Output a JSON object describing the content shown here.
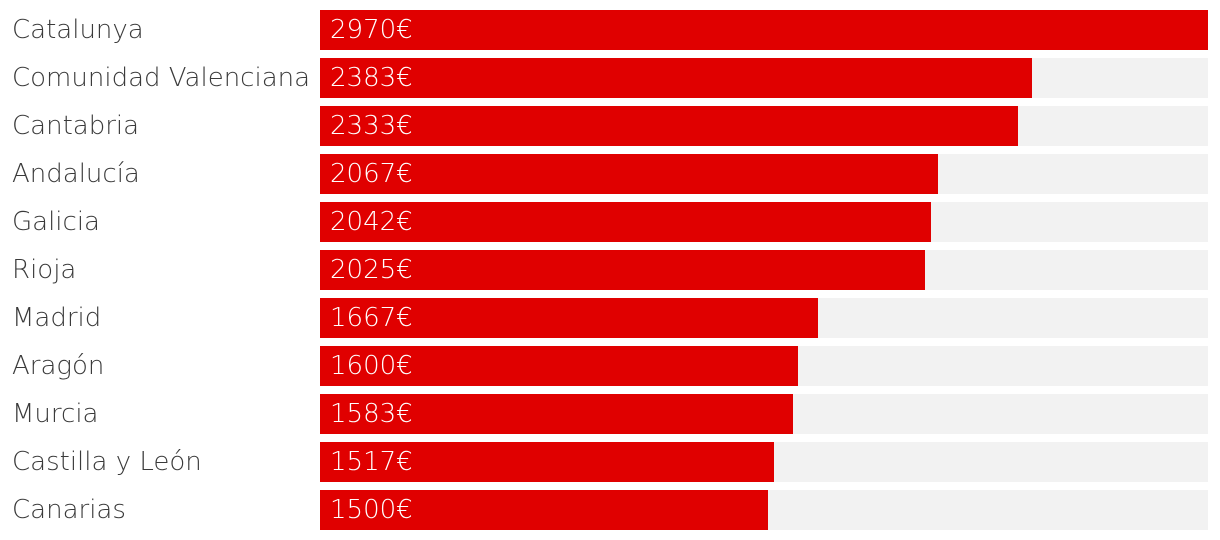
{
  "colors": {
    "bar": "#e00000",
    "track": "#f2f2f2",
    "label": "#3a3a3a",
    "value_text": "#ffffff"
  },
  "chart_data": {
    "type": "bar",
    "orientation": "horizontal",
    "categories": [
      "Catalunya",
      "Comunidad Valenciana",
      "Cantabria",
      "Andalucía",
      "Galicia",
      "Rioja",
      "Madrid",
      "Aragón",
      "Murcia",
      "Castilla y León",
      "Canarias"
    ],
    "values": [
      2970,
      2383,
      2333,
      2067,
      2042,
      2025,
      1667,
      1600,
      1583,
      1517,
      1500
    ],
    "value_labels": [
      "2970€",
      "2383€",
      "2333€",
      "2067€",
      "2042€",
      "2025€",
      "1667€",
      "1600€",
      "1583€",
      "1517€",
      "1500€"
    ],
    "xlim": [
      0,
      2970
    ],
    "grid": false,
    "legend": "none"
  }
}
